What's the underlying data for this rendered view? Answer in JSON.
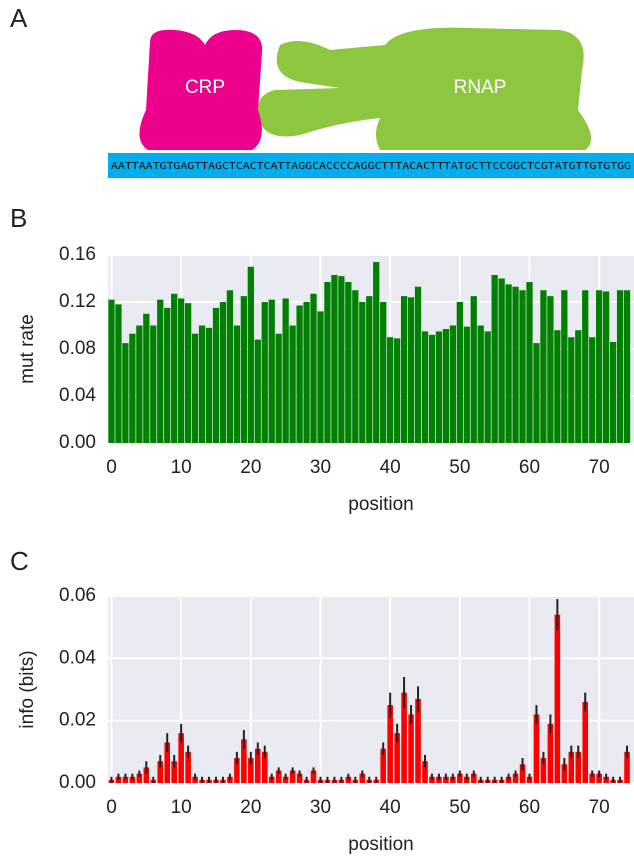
{
  "panel_labels": [
    "A",
    "B",
    "C"
  ],
  "diagram": {
    "proteins": [
      "CRP",
      "RNAP"
    ],
    "sequence": "AATTAATGTGAGTTAGCTCACTCATTAGGCACCCCAGGCTTTACACTTTATGCTTCCGGCTCGTATGTTGTGTGG"
  },
  "chart_data": [
    {
      "type": "bar",
      "xlabel": "position",
      "ylabel": "mut rate",
      "color": "#008000",
      "grid": true,
      "xlim": [
        -0.5,
        75
      ],
      "ylim": [
        0,
        0.16
      ],
      "xticks": [
        0,
        10,
        20,
        30,
        40,
        50,
        60,
        70
      ],
      "yticks": [
        {
          "value": 0,
          "label": "0.00"
        },
        0.04,
        0.08,
        0.12,
        0.16
      ],
      "x": [
        0,
        1,
        2,
        3,
        4,
        5,
        6,
        7,
        8,
        9,
        10,
        11,
        12,
        13,
        14,
        15,
        16,
        17,
        18,
        19,
        20,
        21,
        22,
        23,
        24,
        25,
        26,
        27,
        28,
        29,
        30,
        31,
        32,
        33,
        34,
        35,
        36,
        37,
        38,
        39,
        40,
        41,
        42,
        43,
        44,
        45,
        46,
        47,
        48,
        49,
        50,
        51,
        52,
        53,
        54,
        55,
        56,
        57,
        58,
        59,
        60,
        61,
        62,
        63,
        64,
        65,
        66,
        67,
        68,
        69,
        70,
        71,
        72,
        73,
        74
      ],
      "values": [
        0.122,
        0.118,
        0.085,
        0.093,
        0.1,
        0.11,
        0.1,
        0.122,
        0.115,
        0.127,
        0.123,
        0.119,
        0.093,
        0.1,
        0.098,
        0.115,
        0.12,
        0.13,
        0.1,
        0.125,
        0.15,
        0.088,
        0.12,
        0.122,
        0.093,
        0.123,
        0.1,
        0.117,
        0.12,
        0.127,
        0.112,
        0.137,
        0.143,
        0.142,
        0.137,
        0.13,
        0.12,
        0.125,
        0.154,
        0.12,
        0.09,
        0.089,
        0.125,
        0.124,
        0.133,
        0.095,
        0.092,
        0.095,
        0.097,
        0.1,
        0.12,
        0.099,
        0.125,
        0.1,
        0.095,
        0.143,
        0.14,
        0.135,
        0.133,
        0.13,
        0.137,
        0.085,
        0.13,
        0.125,
        0.096,
        0.13,
        0.09,
        0.096,
        0.13,
        0.09,
        0.13,
        0.129,
        0.086,
        0.13,
        0.13
      ]
    },
    {
      "type": "errorbar",
      "xlabel": "position",
      "ylabel": "info (bits)",
      "color": "#ff0000",
      "error_color": "#222222",
      "grid": true,
      "xlim": [
        -0.5,
        75
      ],
      "ylim": [
        0,
        0.06
      ],
      "xticks": [
        0,
        10,
        20,
        30,
        40,
        50,
        60,
        70
      ],
      "yticks": [
        {
          "value": 0,
          "label": "0.00"
        },
        0.02,
        0.04,
        0.06
      ],
      "x": [
        0,
        1,
        2,
        3,
        4,
        5,
        6,
        7,
        8,
        9,
        10,
        11,
        12,
        13,
        14,
        15,
        16,
        17,
        18,
        19,
        20,
        21,
        22,
        23,
        24,
        25,
        26,
        27,
        28,
        29,
        30,
        31,
        32,
        33,
        34,
        35,
        36,
        37,
        38,
        39,
        40,
        41,
        42,
        43,
        44,
        45,
        46,
        47,
        48,
        49,
        50,
        51,
        52,
        53,
        54,
        55,
        56,
        57,
        58,
        59,
        60,
        61,
        62,
        63,
        64,
        65,
        66,
        67,
        68,
        69,
        70,
        71,
        72,
        73,
        74
      ],
      "values": [
        0.001,
        0.002,
        0.002,
        0.002,
        0.003,
        0.005,
        0.001,
        0.007,
        0.013,
        0.007,
        0.016,
        0.01,
        0.002,
        0.001,
        0.001,
        0.001,
        0.001,
        0.002,
        0.008,
        0.014,
        0.008,
        0.011,
        0.01,
        0.002,
        0.004,
        0.002,
        0.004,
        0.003,
        0.001,
        0.004,
        0.001,
        0.001,
        0.001,
        0.001,
        0.002,
        0.001,
        0.003,
        0.001,
        0.001,
        0.011,
        0.025,
        0.016,
        0.029,
        0.022,
        0.027,
        0.007,
        0.002,
        0.002,
        0.002,
        0.002,
        0.003,
        0.002,
        0.003,
        0.001,
        0.001,
        0.001,
        0.001,
        0.002,
        0.003,
        0.006,
        0.002,
        0.022,
        0.008,
        0.019,
        0.054,
        0.006,
        0.01,
        0.01,
        0.026,
        0.003,
        0.003,
        0.002,
        0.001,
        0.001,
        0.01
      ],
      "errors": [
        0.001,
        0.001,
        0.001,
        0.001,
        0.001,
        0.002,
        0.001,
        0.002,
        0.003,
        0.002,
        0.003,
        0.002,
        0.001,
        0.001,
        0.001,
        0.001,
        0.001,
        0.001,
        0.002,
        0.003,
        0.002,
        0.002,
        0.002,
        0.001,
        0.001,
        0.001,
        0.001,
        0.001,
        0.001,
        0.001,
        0.001,
        0.001,
        0.001,
        0.001,
        0.001,
        0.001,
        0.001,
        0.001,
        0.001,
        0.002,
        0.004,
        0.003,
        0.005,
        0.003,
        0.004,
        0.002,
        0.001,
        0.001,
        0.001,
        0.001,
        0.001,
        0.001,
        0.001,
        0.001,
        0.001,
        0.001,
        0.001,
        0.001,
        0.001,
        0.002,
        0.001,
        0.003,
        0.002,
        0.003,
        0.005,
        0.002,
        0.002,
        0.002,
        0.003,
        0.001,
        0.001,
        0.001,
        0.001,
        0.001,
        0.002
      ]
    }
  ]
}
